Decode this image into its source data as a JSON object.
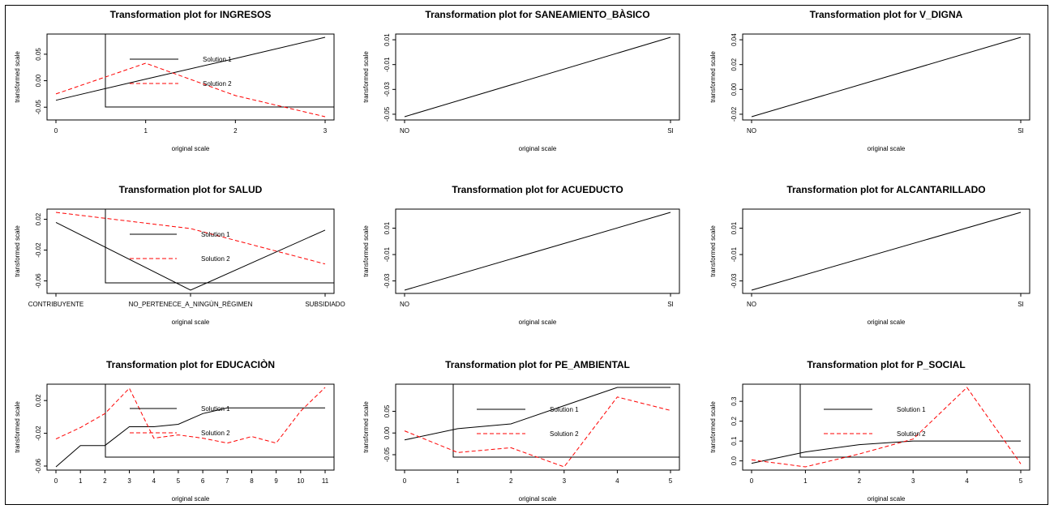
{
  "colors": {
    "solution1": "#000000",
    "solution2": "#ff0000"
  },
  "chart_data": [
    {
      "type": "line",
      "title": "Transformation plot for INGRESOS",
      "xlabel": "original scale",
      "ylabel": "transformed scale",
      "categories": [
        "0",
        "1",
        "2",
        "3"
      ],
      "yticks": [
        "-0.05",
        "0.00",
        "0.05"
      ],
      "ytick_values": [
        -0.05,
        0.0,
        0.05
      ],
      "ylim": [
        -0.068,
        0.082
      ],
      "series": [
        {
          "name": "Solution 1",
          "values": [
            -0.037,
            0.003,
            0.042,
            0.082
          ]
        },
        {
          "name": "Solution 2",
          "values": [
            -0.025,
            0.033,
            -0.028,
            -0.068
          ]
        }
      ],
      "legend": "top-left"
    },
    {
      "type": "line",
      "title": "Transformation plot for SANEAMIENTO_BÀSICO",
      "xlabel": "original scale",
      "ylabel": "transformed scale",
      "categories": [
        "NO",
        "SI"
      ],
      "yticks": [
        "-0.05",
        "-0.03",
        "-0.01",
        "0.01"
      ],
      "ytick_values": [
        -0.05,
        -0.03,
        -0.01,
        0.01
      ],
      "ylim": [
        -0.052,
        0.012
      ],
      "series": [
        {
          "values": [
            -0.052,
            0.012
          ]
        }
      ]
    },
    {
      "type": "line",
      "title": "Transformation plot for V_DIGNA",
      "xlabel": "original scale",
      "ylabel": "transformed scale",
      "categories": [
        "NO",
        "SI"
      ],
      "yticks": [
        "-0.02",
        "0.00",
        "0.02",
        "0.04"
      ],
      "ytick_values": [
        -0.02,
        0.0,
        0.02,
        0.04
      ],
      "ylim": [
        -0.022,
        0.042
      ],
      "series": [
        {
          "values": [
            -0.022,
            0.042
          ]
        }
      ]
    },
    {
      "type": "line",
      "title": "Transformation plot for SALUD",
      "xlabel": "original scale",
      "ylabel": "transformed scale",
      "categories": [
        "CONTRIBUYENTE",
        "NO_PERTENECE_A_NINGÙN_RÈGIMEN",
        "SUBSIDIADO"
      ],
      "yticks": [
        "-0.06",
        "-0.02",
        "0.02"
      ],
      "ytick_values": [
        -0.06,
        -0.02,
        0.02
      ],
      "ylim": [
        -0.072,
        0.029
      ],
      "series": [
        {
          "name": "Solution 1",
          "values": [
            0.016,
            -0.072,
            0.006
          ]
        },
        {
          "name": "Solution 2",
          "values": [
            0.029,
            0.008,
            -0.038
          ]
        }
      ],
      "legend": "top-left"
    },
    {
      "type": "line",
      "title": "Transformation plot for ACUEDUCTO",
      "xlabel": "original scale",
      "ylabel": "transformed scale",
      "categories": [
        "NO",
        "SI"
      ],
      "yticks": [
        "-0.03",
        "-0.01",
        "0.01"
      ],
      "ytick_values": [
        -0.03,
        -0.01,
        0.01
      ],
      "ylim": [
        -0.037,
        0.022
      ],
      "series": [
        {
          "values": [
            -0.037,
            0.022
          ]
        }
      ]
    },
    {
      "type": "line",
      "title": "Transformation plot for ALCANTARILLADO",
      "xlabel": "original scale",
      "ylabel": "transformed scale",
      "categories": [
        "NO",
        "SI"
      ],
      "yticks": [
        "-0.03",
        "-0.01",
        "0.01"
      ],
      "ytick_values": [
        -0.03,
        -0.01,
        0.01
      ],
      "ylim": [
        -0.037,
        0.022
      ],
      "series": [
        {
          "values": [
            -0.037,
            0.022
          ]
        }
      ]
    },
    {
      "type": "line",
      "title": "Transformation plot for EDUCACIÒN",
      "xlabel": "original scale",
      "ylabel": "transformed scale",
      "categories": [
        "0",
        "1",
        "2",
        "3",
        "4",
        "5",
        "6",
        "7",
        "8",
        "9",
        "10",
        "11"
      ],
      "yticks": [
        "-0.06",
        "-0.02",
        "0.02"
      ],
      "ytick_values": [
        -0.06,
        -0.02,
        0.02
      ],
      "ylim": [
        -0.061,
        0.036
      ],
      "series": [
        {
          "name": "Solution 1",
          "values": [
            -0.061,
            -0.035,
            -0.035,
            -0.012,
            -0.012,
            -0.009,
            0.004,
            0.011,
            0.011,
            0.011,
            0.011,
            0.011
          ]
        },
        {
          "name": "Solution 2",
          "values": [
            -0.027,
            -0.013,
            0.004,
            0.035,
            -0.026,
            -0.022,
            -0.026,
            -0.032,
            -0.024,
            -0.032,
            0.007,
            0.036
          ]
        }
      ],
      "legend": "top-left"
    },
    {
      "type": "line",
      "title": "Transformation plot for PE_AMBIENTAL",
      "xlabel": "original scale",
      "ylabel": "transformed scale",
      "categories": [
        "0",
        "1",
        "2",
        "3",
        "4",
        "5"
      ],
      "yticks": [
        "-0.05",
        "0.00",
        "0.05"
      ],
      "ytick_values": [
        -0.05,
        0.0,
        0.05
      ],
      "ylim": [
        -0.078,
        0.105
      ],
      "series": [
        {
          "name": "Solution 1",
          "values": [
            -0.016,
            0.01,
            0.021,
            0.063,
            0.105,
            0.105
          ]
        },
        {
          "name": "Solution 2",
          "values": [
            0.005,
            -0.045,
            -0.034,
            -0.078,
            0.083,
            0.052
          ]
        }
      ],
      "legend": "top-left"
    },
    {
      "type": "line",
      "title": "Transformation plot for P_SOCIAL",
      "xlabel": "original scale",
      "ylabel": "transformed scale",
      "categories": [
        "0",
        "1",
        "2",
        "3",
        "4",
        "5"
      ],
      "yticks": [
        "0.0",
        "0.1",
        "0.2",
        "0.3"
      ],
      "ytick_values": [
        0.0,
        0.1,
        0.2,
        0.3
      ],
      "ylim": [
        -0.03,
        0.37
      ],
      "series": [
        {
          "name": "Solution 1",
          "values": [
            -0.012,
            0.045,
            0.082,
            0.1,
            0.1,
            0.1
          ]
        },
        {
          "name": "Solution 2",
          "values": [
            0.005,
            -0.03,
            0.035,
            0.11,
            0.37,
            -0.015
          ]
        }
      ],
      "legend": "top-left"
    }
  ]
}
